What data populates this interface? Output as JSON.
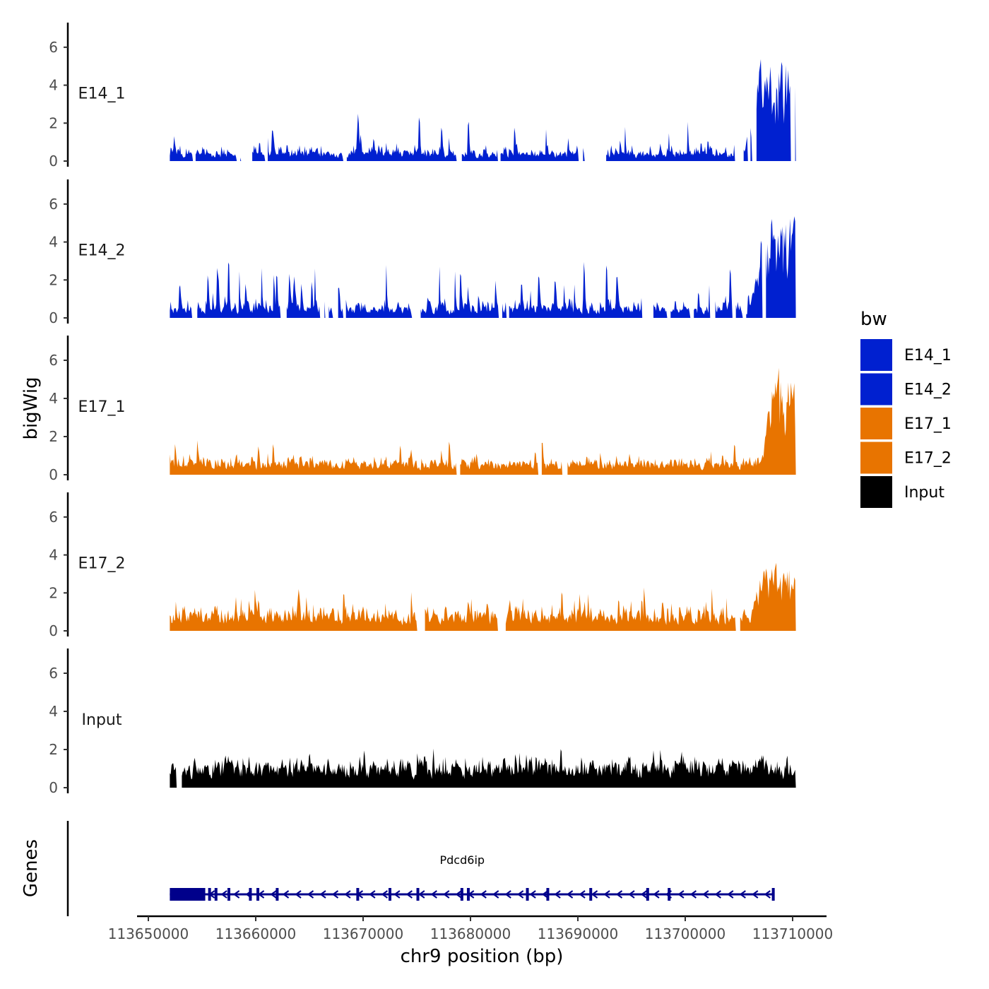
{
  "chart_data": {
    "type": "area",
    "chromosome": "chr9",
    "xlabel": "chr9 position (bp)",
    "ylabel": "bigWig",
    "genes_label": "Genes",
    "xlim": [
      113648000,
      113710000
    ],
    "ylim": [
      0,
      7
    ],
    "yticks": [
      0,
      2,
      4,
      6
    ],
    "xticks": [
      113650000,
      113660000,
      113670000,
      113680000,
      113690000,
      113700000,
      113710000
    ],
    "xtick_labels": [
      "113650000",
      "113660000",
      "113670000",
      "113680000",
      "113690000",
      "113700000",
      "113710000"
    ],
    "data_range": [
      113652000,
      113710300
    ],
    "legend": {
      "title": "bw",
      "entries": [
        {
          "label": "E14_1",
          "color": "#0020D0"
        },
        {
          "label": "E14_2",
          "color": "#0020D0"
        },
        {
          "label": "E17_1",
          "color": "#E87400"
        },
        {
          "label": "E17_2",
          "color": "#E87400"
        },
        {
          "label": "Input",
          "color": "#000000"
        }
      ]
    },
    "series": [
      {
        "name": "E14_1",
        "color": "#0020D0",
        "baseline": 0.4,
        "noise": 0.6,
        "spike_prob": 0.06,
        "spike_max": 2.2,
        "gap_prob": 0.1,
        "seed": 11,
        "peak": {
          "start": 113705500,
          "end": 113710300,
          "height": 5.2
        },
        "gaps": [
          [
            113658600,
            113659600
          ],
          [
            113690600,
            113692600
          ],
          [
            113704800,
            113705400
          ]
        ]
      },
      {
        "name": "E14_2",
        "color": "#0020D0",
        "baseline": 0.5,
        "noise": 0.7,
        "spike_prob": 0.07,
        "spike_max": 3.0,
        "gap_prob": 0.08,
        "seed": 23,
        "peak": {
          "start": 113706000,
          "end": 113710300,
          "height": 5.0
        },
        "gaps": [
          [
            113662300,
            113662800
          ],
          [
            113674500,
            113675300
          ],
          [
            113696000,
            113697000
          ]
        ]
      },
      {
        "name": "E17_1",
        "color": "#E87400",
        "baseline": 0.6,
        "noise": 0.5,
        "spike_prob": 0.05,
        "spike_max": 1.6,
        "gap_prob": 0.03,
        "seed": 37,
        "peak": {
          "start": 113707000,
          "end": 113710300,
          "height": 5.0
        },
        "gaps": [
          [
            113688500,
            113689000
          ]
        ]
      },
      {
        "name": "E17_2",
        "color": "#E87400",
        "baseline": 0.8,
        "noise": 0.8,
        "spike_prob": 0.06,
        "spike_max": 2.2,
        "gap_prob": 0.03,
        "seed": 53,
        "peak": {
          "start": 113706000,
          "end": 113710300,
          "height": 2.8
        },
        "gaps": [
          [
            113675000,
            113675700
          ],
          [
            113682500,
            113683200
          ]
        ]
      },
      {
        "name": "Input",
        "color": "#000000",
        "baseline": 1.1,
        "noise": 0.7,
        "spike_prob": 0.07,
        "spike_max": 1.6,
        "gap_prob": 0.0,
        "seed": 71,
        "peak": null,
        "gaps": [
          [
            113652600,
            113653100
          ]
        ]
      }
    ],
    "gene": {
      "name": "Pdcd6ip",
      "strand": "-",
      "start": 113652000,
      "end": 113708300,
      "color": "#00008B",
      "utr_block": [
        113652000,
        113655300
      ],
      "exons": [
        113655700,
        113656300,
        113657500,
        113659500,
        113660200,
        113662000,
        113669500,
        113672500,
        113675100,
        113679200,
        113679800,
        113685300,
        113687200,
        113691200,
        113696500,
        113698500,
        113708200
      ]
    }
  }
}
